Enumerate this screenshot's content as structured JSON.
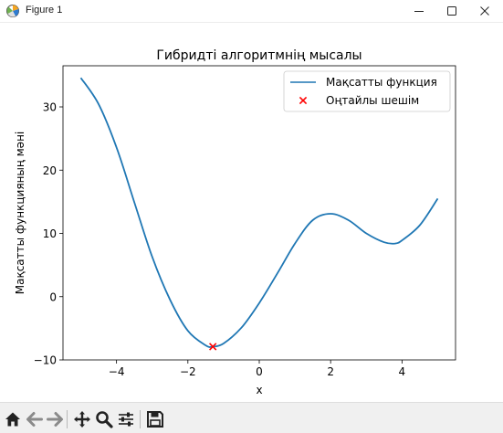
{
  "window": {
    "title": "Figure 1"
  },
  "toolbar": {
    "buttons": [
      "home-icon",
      "back-icon",
      "forward-icon",
      "pan-icon",
      "zoom-icon",
      "configure-subplots-icon",
      "save-icon"
    ]
  },
  "chart_data": {
    "type": "line",
    "title": "Гибридті алгоритмнің мысалы",
    "xlabel": "x",
    "ylabel": "Мақсатты функцияның мәні",
    "xlim": [
      -5.5,
      5.5
    ],
    "ylim": [
      -10,
      36.5
    ],
    "xticks": [
      -4,
      -2,
      0,
      2,
      4
    ],
    "yticks": [
      -10,
      0,
      10,
      20,
      30
    ],
    "xtick_labels": [
      "−4",
      "−2",
      "0",
      "2",
      "4"
    ],
    "ytick_labels": [
      "−10",
      "0",
      "10",
      "20",
      "30"
    ],
    "grid": false,
    "legend_position": "top-right",
    "series": [
      {
        "name": "Мақсатты функция",
        "kind": "line",
        "color": "#1f77b4",
        "x": [
          -5.0,
          -4.5,
          -4.0,
          -3.5,
          -3.0,
          -2.5,
          -2.0,
          -1.5,
          -1.3,
          -1.0,
          -0.5,
          0.0,
          0.5,
          1.0,
          1.5,
          2.0,
          2.5,
          3.0,
          3.5,
          3.8,
          4.0,
          4.5,
          5.0
        ],
        "y": [
          34.6,
          30.4,
          23.6,
          14.9,
          6.3,
          -0.5,
          -5.4,
          -7.7,
          -7.9,
          -7.4,
          -4.9,
          -1.0,
          3.6,
          8.4,
          12.1,
          13.1,
          12.1,
          10.0,
          8.6,
          8.4,
          8.9,
          11.3,
          15.5
        ]
      },
      {
        "name": "Оңтайлы шешім",
        "kind": "scatter",
        "marker": "x",
        "color": "#ff0000",
        "x": [
          -1.3
        ],
        "y": [
          -7.9
        ]
      }
    ]
  }
}
